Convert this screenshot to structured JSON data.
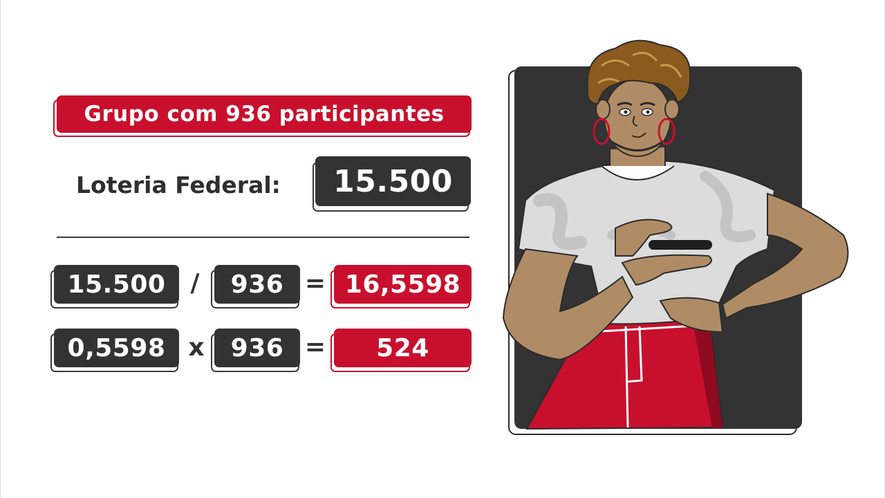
{
  "header": {
    "title": "Grupo com 936 participantes"
  },
  "prize": {
    "label": "Loteria Federal:",
    "value": "15.500"
  },
  "division": {
    "dividend": "15.500",
    "operator": "/",
    "divisor": "936",
    "equals": "=",
    "result": "16,5598"
  },
  "multiplication": {
    "factor1": "0,5598",
    "operator": "x",
    "factor2": "936",
    "equals": "=",
    "result": "524"
  },
  "colors": {
    "accent": "#c8102e",
    "dark": "#333333",
    "background": "#ffffff"
  }
}
